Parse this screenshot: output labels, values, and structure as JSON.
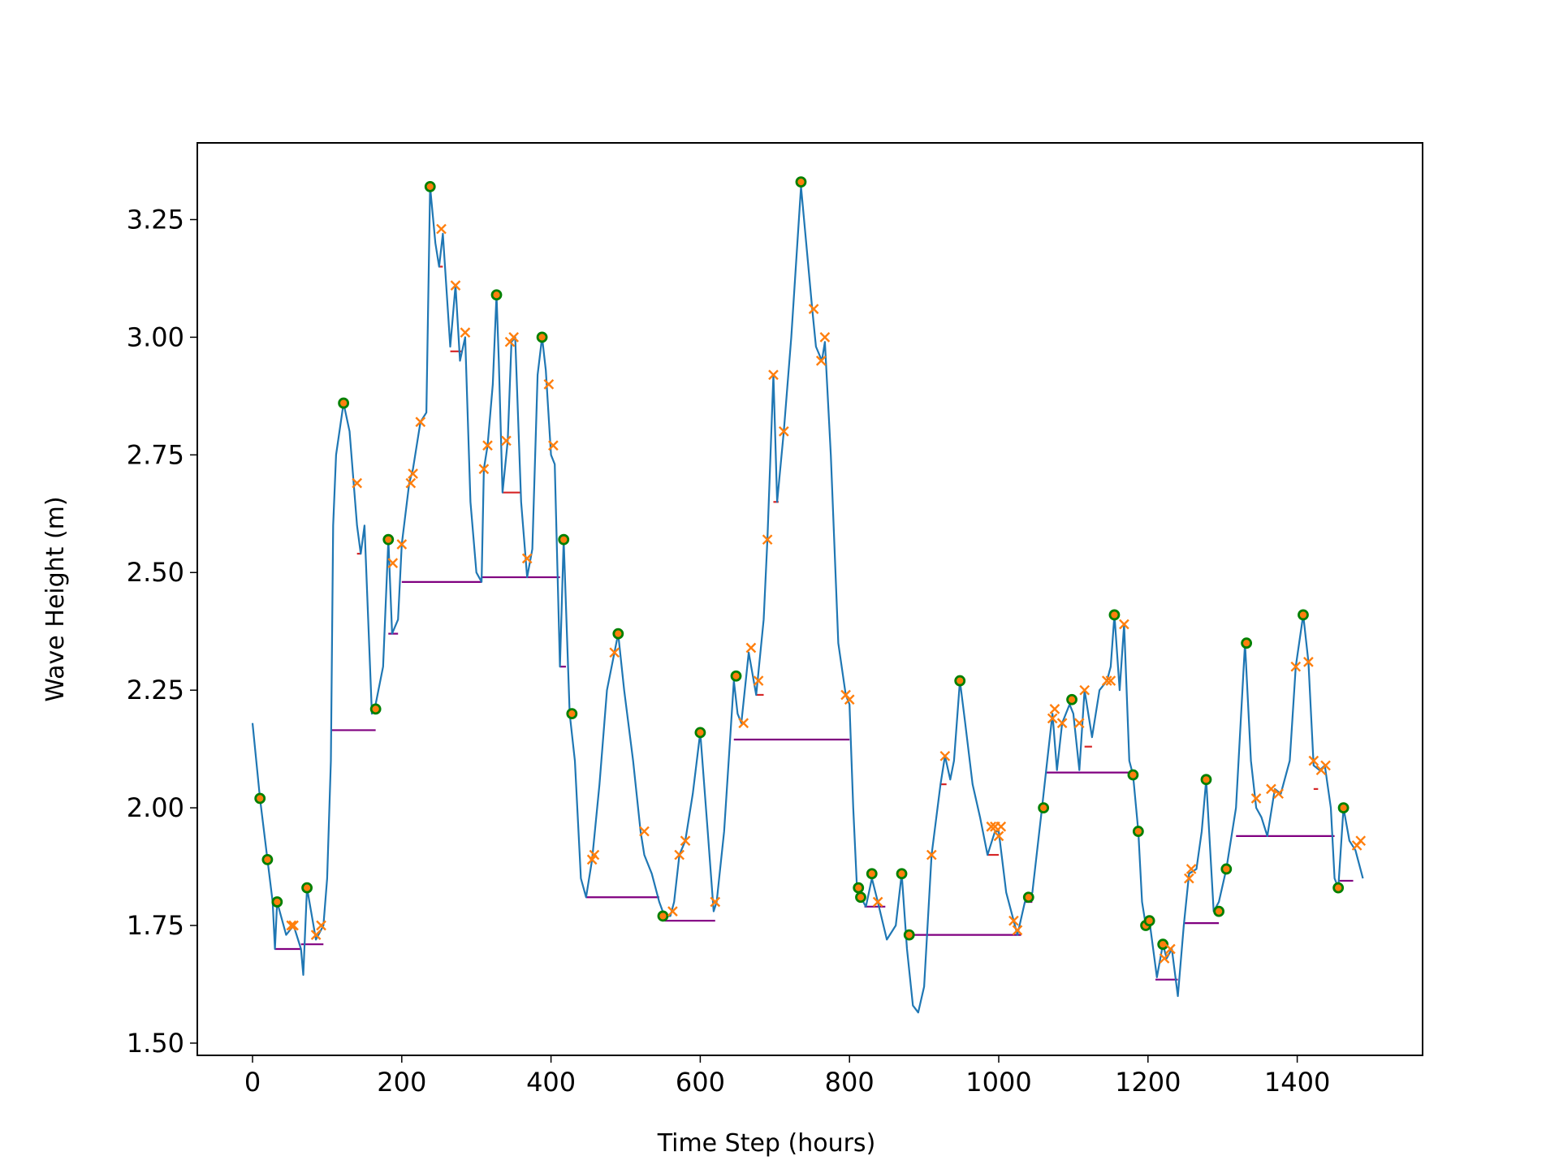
{
  "chart_data": {
    "type": "line",
    "xlabel": "Time Step (hours)",
    "ylabel": "Wave Height (m)",
    "xlim": [
      -74,
      1568
    ],
    "ylim": [
      1.474,
      3.413
    ],
    "xticks": [
      0,
      200,
      400,
      600,
      800,
      1000,
      1200,
      1400
    ],
    "yticks": [
      {
        "value": 1.5,
        "label": "1.50"
      },
      1.75,
      {
        "value": 2.0,
        "label": "2.00"
      },
      2.25,
      {
        "value": 2.5,
        "label": "2.50"
      },
      2.75,
      {
        "value": 3.0,
        "label": "3.00"
      },
      3.25
    ],
    "series": [
      {
        "color": "#1f77b4",
        "x": [
          0,
          10,
          20,
          27,
          30,
          33,
          45,
          55,
          65,
          68,
          73,
          85,
          95,
          100,
          105,
          108,
          112,
          122,
          130,
          140,
          145,
          150,
          160,
          165,
          175,
          182,
          187,
          195,
          200,
          210,
          215,
          225,
          233,
          238,
          245,
          250,
          255,
          265,
          272,
          278,
          285,
          292,
          300,
          307,
          310,
          315,
          322,
          327,
          330,
          335,
          342,
          347,
          352,
          360,
          368,
          375,
          382,
          388,
          393,
          400,
          405,
          412,
          417,
          425,
          432,
          440,
          447,
          455,
          465,
          475,
          485,
          490,
          498,
          510,
          520,
          525,
          535,
          545,
          552,
          560,
          565,
          572,
          580,
          590,
          600,
          610,
          618,
          622,
          632,
          645,
          650,
          655,
          665,
          675,
          685,
          690,
          698,
          703,
          712,
          722,
          735,
          742,
          750,
          755,
          763,
          767,
          775,
          785,
          795,
          800,
          805,
          810,
          815,
          822,
          830,
          838,
          850,
          862,
          870,
          877,
          885,
          892,
          900,
          910,
          922,
          928,
          935,
          940,
          948,
          955,
          965,
          975,
          985,
          995,
          1000,
          1010,
          1020,
          1025,
          1035,
          1045,
          1058,
          1065,
          1072,
          1078,
          1085,
          1095,
          1100,
          1108,
          1115,
          1125,
          1135,
          1145,
          1150,
          1155,
          1162,
          1168,
          1175,
          1180,
          1187,
          1192,
          1197,
          1202,
          1212,
          1220,
          1225,
          1232,
          1240,
          1248,
          1255,
          1265,
          1272,
          1278,
          1288,
          1295,
          1305,
          1318,
          1330,
          1338,
          1345,
          1352,
          1360,
          1370,
          1378,
          1390,
          1398,
          1408,
          1415,
          1422,
          1430,
          1437,
          1445,
          1450,
          1455,
          1462,
          1470,
          1478,
          1488
        ],
        "values": [
          2.18,
          2.02,
          1.89,
          1.8,
          1.7,
          1.8,
          1.73,
          1.75,
          1.7,
          1.645,
          1.83,
          1.72,
          1.75,
          1.85,
          2.1,
          2.6,
          2.75,
          2.86,
          2.8,
          2.6,
          2.54,
          2.6,
          2.2,
          2.22,
          2.3,
          2.57,
          2.37,
          2.4,
          2.56,
          2.69,
          2.72,
          2.82,
          2.84,
          3.32,
          3.2,
          3.15,
          3.22,
          2.98,
          3.11,
          2.95,
          3.0,
          2.65,
          2.5,
          2.48,
          2.72,
          2.77,
          2.9,
          3.09,
          2.95,
          2.67,
          2.78,
          2.99,
          3.0,
          2.65,
          2.49,
          2.55,
          2.92,
          3.0,
          2.93,
          2.75,
          2.73,
          2.3,
          2.57,
          2.2,
          2.1,
          1.85,
          1.81,
          1.89,
          2.05,
          2.25,
          2.33,
          2.37,
          2.25,
          2.1,
          1.95,
          1.9,
          1.86,
          1.8,
          1.77,
          1.77,
          1.8,
          1.9,
          1.93,
          2.03,
          2.16,
          1.95,
          1.78,
          1.8,
          1.95,
          2.27,
          2.2,
          2.18,
          2.33,
          2.24,
          2.4,
          2.57,
          2.92,
          2.65,
          2.8,
          3.0,
          3.32,
          3.2,
          3.06,
          2.98,
          2.95,
          2.99,
          2.75,
          2.35,
          2.24,
          2.22,
          2.0,
          1.83,
          1.81,
          1.79,
          1.85,
          1.8,
          1.72,
          1.75,
          1.86,
          1.7,
          1.58,
          1.565,
          1.62,
          1.9,
          2.05,
          2.11,
          2.06,
          2.1,
          2.27,
          2.18,
          2.05,
          1.98,
          1.9,
          1.95,
          1.95,
          1.82,
          1.76,
          1.73,
          1.8,
          1.82,
          2.0,
          2.1,
          2.2,
          2.08,
          2.18,
          2.22,
          2.2,
          2.08,
          2.25,
          2.15,
          2.25,
          2.27,
          2.3,
          2.41,
          2.25,
          2.39,
          2.1,
          2.07,
          1.95,
          1.8,
          1.75,
          1.76,
          1.64,
          1.71,
          1.68,
          1.7,
          1.6,
          1.75,
          1.86,
          1.87,
          1.95,
          2.06,
          1.78,
          1.8,
          1.87,
          2.0,
          2.35,
          2.1,
          2.0,
          1.98,
          1.94,
          2.04,
          2.03,
          2.1,
          2.3,
          2.41,
          2.31,
          2.09,
          2.08,
          2.09,
          2.0,
          1.85,
          1.83,
          2.0,
          1.93,
          1.91,
          1.85
        ]
      }
    ],
    "hlines": [
      {
        "color": "#800080",
        "xmin": [
          30,
          65,
          105,
          182,
          200,
          307,
          412,
          447,
          552,
          645,
          820,
          878,
          1035,
          1063,
          1210,
          1248,
          1318,
          1455
        ],
        "xmax": [
          65,
          95,
          165,
          195,
          307,
          412,
          420,
          545,
          620,
          800,
          848,
          1030,
          1045,
          1180,
          1240,
          1295,
          1450,
          1475
        ],
        "y": [
          1.7,
          1.71,
          2.165,
          2.37,
          2.48,
          2.49,
          2.3,
          1.81,
          1.76,
          2.145,
          1.79,
          1.73,
          1.8,
          2.075,
          1.635,
          1.755,
          1.94,
          1.845
        ]
      },
      {
        "color": "#d62728",
        "xmin": [
          140,
          250,
          265,
          335,
          675,
          698,
          922,
          985,
          1115,
          1422
        ],
        "xmax": [
          145,
          255,
          280,
          360,
          685,
          705,
          930,
          1000,
          1125,
          1428
        ],
        "y": [
          2.54,
          3.15,
          2.97,
          2.67,
          2.24,
          2.65,
          2.05,
          1.9,
          2.13,
          2.04
        ]
      }
    ],
    "markers": [
      {
        "marker": "o",
        "color": "#ff7f0e",
        "edgecolor": "#008000",
        "x": [
          10,
          20,
          33,
          73,
          122,
          165,
          182,
          238,
          327,
          388,
          417,
          428,
          490,
          550,
          600,
          648,
          735,
          812,
          815,
          830,
          870,
          880,
          948,
          1040,
          1060,
          1098,
          1155,
          1180,
          1187,
          1197,
          1202,
          1220,
          1278,
          1295,
          1305,
          1332,
          1408,
          1455,
          1462
        ],
        "values": [
          2.02,
          1.89,
          1.8,
          1.83,
          2.86,
          2.21,
          2.57,
          3.32,
          3.09,
          3.0,
          2.57,
          2.2,
          2.37,
          1.77,
          2.16,
          2.28,
          3.33,
          1.83,
          1.81,
          1.86,
          1.86,
          1.73,
          2.27,
          1.81,
          2.0,
          2.23,
          2.41,
          2.07,
          1.95,
          1.75,
          1.76,
          1.71,
          2.06,
          1.78,
          1.87,
          2.35,
          2.41,
          1.83,
          2.0
        ]
      },
      {
        "marker": "x",
        "color": "#ff7f0e",
        "x": [
          52,
          55,
          85,
          92,
          140,
          188,
          200,
          212,
          215,
          225,
          253,
          272,
          285,
          310,
          315,
          340,
          345,
          350,
          368,
          397,
          403,
          455,
          458,
          485,
          525,
          563,
          572,
          580,
          620,
          658,
          668,
          678,
          690,
          698,
          712,
          752,
          762,
          767,
          795,
          800,
          838,
          910,
          928,
          990,
          995,
          1000,
          1003,
          1020,
          1025,
          1072,
          1075,
          1085,
          1108,
          1115,
          1145,
          1150,
          1168,
          1222,
          1230,
          1255,
          1258,
          1345,
          1365,
          1375,
          1398,
          1415,
          1422,
          1432,
          1438,
          1480,
          1485
        ],
        "values": [
          1.75,
          1.75,
          1.73,
          1.75,
          2.69,
          2.52,
          2.56,
          2.69,
          2.71,
          2.82,
          3.23,
          3.11,
          3.01,
          2.72,
          2.77,
          2.78,
          2.99,
          3.0,
          2.53,
          2.9,
          2.77,
          1.89,
          1.9,
          2.33,
          1.95,
          1.78,
          1.9,
          1.93,
          1.8,
          2.18,
          2.34,
          2.27,
          2.57,
          2.92,
          2.8,
          3.06,
          2.95,
          3.0,
          2.24,
          2.23,
          1.8,
          1.9,
          2.11,
          1.96,
          1.96,
          1.94,
          1.96,
          1.76,
          1.74,
          2.19,
          2.21,
          2.18,
          2.18,
          2.25,
          2.27,
          2.27,
          2.39,
          1.68,
          1.7,
          1.85,
          1.87,
          2.02,
          2.04,
          2.03,
          2.3,
          2.31,
          2.1,
          2.08,
          2.09,
          1.92,
          1.93
        ]
      }
    ]
  }
}
